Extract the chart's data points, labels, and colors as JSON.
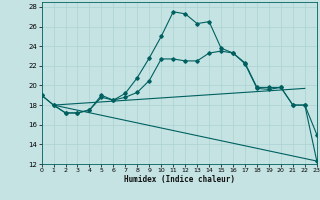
{
  "xlabel": "Humidex (Indice chaleur)",
  "bg_color": "#c5e3e3",
  "line_color": "#006060",
  "grid_color": "#b0d4d4",
  "xlim": [
    0,
    23
  ],
  "ylim": [
    12,
    28.5
  ],
  "xticks": [
    0,
    1,
    2,
    3,
    4,
    5,
    6,
    7,
    8,
    9,
    10,
    11,
    12,
    13,
    14,
    15,
    16,
    17,
    18,
    19,
    20,
    21,
    22,
    23
  ],
  "yticks": [
    12,
    14,
    16,
    18,
    20,
    22,
    24,
    26,
    28
  ],
  "line1_x": [
    0,
    1,
    2,
    3,
    4,
    5,
    6,
    7,
    8,
    9,
    10,
    11,
    12,
    13,
    14,
    15,
    16,
    17,
    18,
    19,
    20,
    21,
    22,
    23
  ],
  "line1_y": [
    19.0,
    18.0,
    17.2,
    17.2,
    17.5,
    18.8,
    18.5,
    18.8,
    19.3,
    20.5,
    22.7,
    22.7,
    22.5,
    22.5,
    23.3,
    23.5,
    23.3,
    22.3,
    19.8,
    19.8,
    19.8,
    18.0,
    18.0,
    15.0
  ],
  "line2_x": [
    0,
    1,
    2,
    3,
    4,
    5,
    6,
    7,
    8,
    9,
    10,
    11,
    12,
    13,
    14,
    15,
    16,
    17,
    18,
    19,
    20,
    21,
    22,
    23
  ],
  "line2_y": [
    19.0,
    18.0,
    17.2,
    17.2,
    17.5,
    19.0,
    18.5,
    19.2,
    20.8,
    22.8,
    25.0,
    27.5,
    27.3,
    26.3,
    26.5,
    23.8,
    23.3,
    22.2,
    19.7,
    19.6,
    19.8,
    18.0,
    18.0,
    12.3
  ],
  "line3_x": [
    1,
    22
  ],
  "line3_y": [
    18.0,
    19.7
  ],
  "line4_x": [
    1,
    23
  ],
  "line4_y": [
    18.0,
    12.3
  ]
}
